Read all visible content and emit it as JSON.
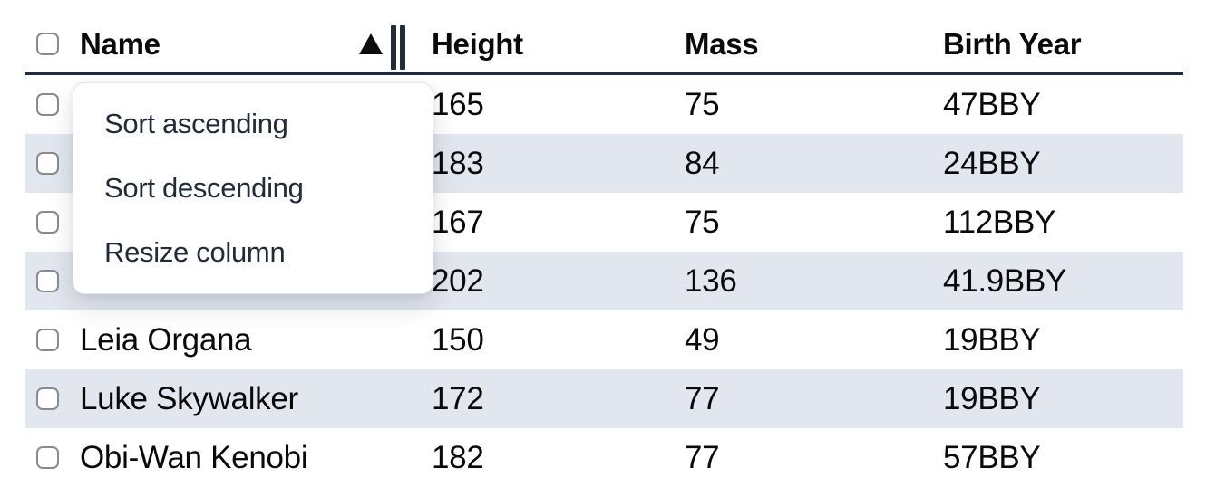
{
  "table": {
    "columns": [
      {
        "key": "name",
        "label": "Name",
        "sorted": "ascending",
        "has_resize_handle": true
      },
      {
        "key": "height",
        "label": "Height"
      },
      {
        "key": "mass",
        "label": "Mass"
      },
      {
        "key": "birth_year",
        "label": "Birth Year"
      }
    ],
    "select_all_checked": false,
    "rows": [
      {
        "name": "",
        "name_occluded_by_menu": true,
        "height": "165",
        "mass": "75",
        "birth_year": "47BBY",
        "striped": false,
        "checked": false
      },
      {
        "name": "",
        "name_occluded_by_menu": true,
        "height": "183",
        "mass": "84",
        "birth_year": "24BBY",
        "striped": true,
        "checked": false
      },
      {
        "name": "",
        "name_occluded_by_menu": true,
        "height": "167",
        "mass": "75",
        "birth_year": "112BBY",
        "striped": false,
        "checked": false
      },
      {
        "name": "",
        "name_occluded_by_menu": true,
        "height": "202",
        "mass": "136",
        "birth_year": "41.9BBY",
        "striped": true,
        "checked": false
      },
      {
        "name": "Leia Organa",
        "height": "150",
        "mass": "49",
        "birth_year": "19BBY",
        "striped": false,
        "checked": false
      },
      {
        "name": "Luke Skywalker",
        "height": "172",
        "mass": "77",
        "birth_year": "19BBY",
        "striped": true,
        "checked": false
      },
      {
        "name": "Obi-Wan Kenobi",
        "height": "182",
        "mass": "77",
        "birth_year": "57BBY",
        "striped": false,
        "checked": false,
        "clipped_at_bottom": true
      }
    ]
  },
  "context_menu": {
    "attached_to_column": "Name",
    "items": [
      {
        "label": "Sort ascending"
      },
      {
        "label": "Sort descending"
      },
      {
        "label": "Resize column"
      }
    ]
  },
  "colors": {
    "row_stripe": "#e2e6ee",
    "header_border": "#212b3b",
    "menu_text": "#202a3a",
    "body_text": "#0a0a0b",
    "checkbox_border": "#8a8a90",
    "menu_border": "#e3e3e8"
  }
}
